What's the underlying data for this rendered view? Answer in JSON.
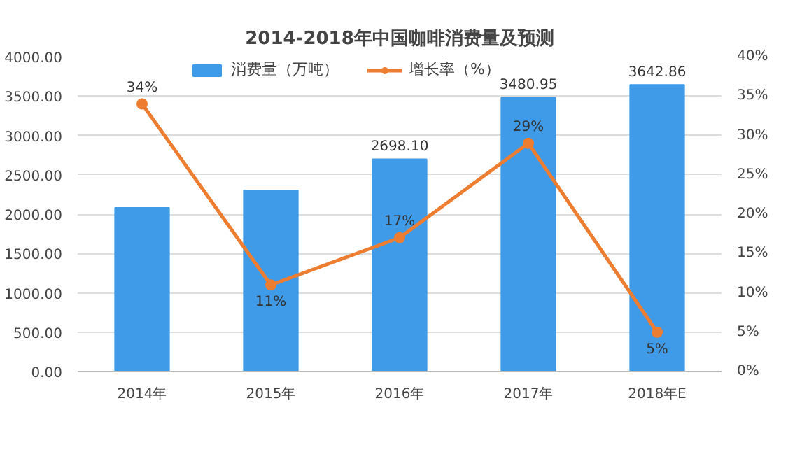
{
  "chart_data": {
    "type": "bar",
    "title": "2014-2018年中国咖啡消费量及预测",
    "categories": [
      "2014年",
      "2015年",
      "2016年",
      "2017年",
      "2018年E"
    ],
    "series": [
      {
        "name": "消费量（万吨）",
        "type": "bar",
        "color": "#3f9ae8",
        "values": [
          2080,
          2300,
          2698.1,
          3480.95,
          3642.86
        ],
        "value_labels": [
          null,
          null,
          "2698.10",
          "3480.95",
          "3642.86"
        ]
      },
      {
        "name": "增长率（%）",
        "type": "line",
        "axis": "y2",
        "color": "#ed7d31",
        "values": [
          34,
          11,
          17,
          29,
          5
        ],
        "value_labels": [
          "34%",
          "11%",
          "17%",
          "29%",
          "5%"
        ]
      }
    ],
    "ylim": [
      0,
      4000
    ],
    "yticks": [
      {
        "value": 0,
        "label": "0.00"
      },
      {
        "value": 500,
        "label": "500.00"
      },
      {
        "value": 1000,
        "label": "1000.00"
      },
      {
        "value": 1500,
        "label": "1500.00"
      },
      {
        "value": 2000,
        "label": "2000.00"
      },
      {
        "value": 2500,
        "label": "2500.00"
      },
      {
        "value": 3000,
        "label": "3000.00"
      },
      {
        "value": 3500,
        "label": "3500.00"
      },
      {
        "value": 4000,
        "label": "4000.00"
      }
    ],
    "y2lim": [
      0,
      40
    ],
    "y2ticks": [
      {
        "value": 0,
        "label": "0%"
      },
      {
        "value": 5,
        "label": "5%"
      },
      {
        "value": 10,
        "label": "10%"
      },
      {
        "value": 15,
        "label": "15%"
      },
      {
        "value": 20,
        "label": "20%"
      },
      {
        "value": 25,
        "label": "25%"
      },
      {
        "value": 30,
        "label": "30%"
      },
      {
        "value": 35,
        "label": "35%"
      },
      {
        "value": 40,
        "label": "40%"
      }
    ],
    "grid": "y",
    "legend": "top",
    "marker": "circle",
    "line_style": "solid"
  }
}
